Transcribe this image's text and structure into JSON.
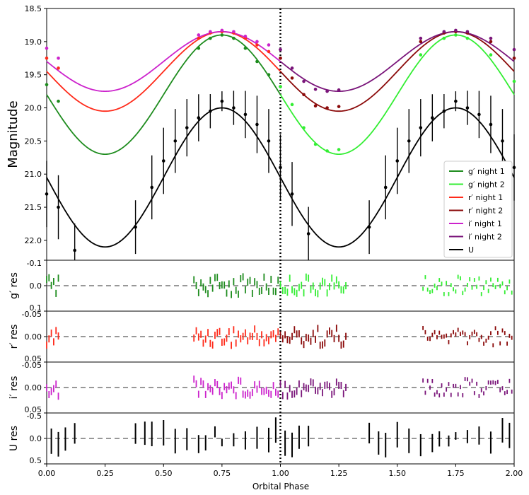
{
  "chart_data": [
    {
      "type": "line",
      "panel": "main",
      "ylabel": "Magnitude",
      "xlim": [
        0,
        2
      ],
      "ylim": [
        18.5,
        22.3
      ],
      "y_inverted": true,
      "y_ticks": [
        "18.5",
        "19.0",
        "19.5",
        "20.0",
        "20.5",
        "21.0",
        "21.5",
        "22.0"
      ],
      "vertical_line_at_phase": 1.0,
      "legend_position": "lower-right",
      "series": [
        {
          "name": "g′ night 1",
          "color": "#1e8c1e",
          "phase": [
            0.0,
            0.05,
            0.65,
            0.7,
            0.75,
            0.8,
            0.85,
            0.9,
            0.95,
            1.0
          ],
          "mag": [
            19.65,
            19.9,
            19.1,
            18.95,
            18.9,
            18.95,
            19.1,
            19.3,
            19.5,
            19.68
          ],
          "model_mean": 19.8,
          "model_amplitude": 0.9
        },
        {
          "name": "g′ night 2",
          "color": "#33ee33",
          "phase": [
            1.0,
            1.05,
            1.1,
            1.15,
            1.2,
            1.25,
            1.6,
            1.7,
            1.75,
            1.8,
            1.9,
            2.0
          ],
          "mag": [
            19.68,
            19.95,
            20.3,
            20.55,
            20.65,
            20.63,
            19.2,
            18.95,
            18.9,
            18.95,
            19.2,
            19.6
          ]
        },
        {
          "name": "r′ night 1",
          "color": "#ff2a1a",
          "phase": [
            0.0,
            0.05,
            0.65,
            0.7,
            0.75,
            0.8,
            0.85,
            0.9,
            0.95,
            1.0
          ],
          "mag": [
            19.25,
            19.4,
            18.95,
            18.87,
            18.85,
            18.87,
            18.95,
            19.05,
            19.15,
            19.25
          ],
          "model_mean": 19.45,
          "model_amplitude": 0.6
        },
        {
          "name": "r′ night 2",
          "color": "#8b0a0a",
          "phase": [
            1.0,
            1.05,
            1.1,
            1.15,
            1.2,
            1.25,
            1.6,
            1.7,
            1.75,
            1.8,
            1.9,
            2.0
          ],
          "mag": [
            19.25,
            19.55,
            19.8,
            19.97,
            20.0,
            19.98,
            19.0,
            18.87,
            18.85,
            18.87,
            19.0,
            19.25
          ]
        },
        {
          "name": "i′ night 1",
          "color": "#cc22cc",
          "phase": [
            0.0,
            0.05,
            0.65,
            0.7,
            0.75,
            0.8,
            0.85,
            0.9,
            0.95,
            1.0
          ],
          "mag": [
            19.1,
            19.25,
            18.9,
            18.85,
            18.83,
            18.85,
            18.92,
            19.0,
            19.05,
            19.12
          ],
          "model_mean": 19.3,
          "model_amplitude": 0.45
        },
        {
          "name": "i′ night 2",
          "color": "#7a157a",
          "phase": [
            1.0,
            1.05,
            1.1,
            1.15,
            1.2,
            1.25,
            1.6,
            1.7,
            1.75,
            1.8,
            1.9,
            2.0
          ],
          "mag": [
            19.12,
            19.4,
            19.6,
            19.72,
            19.75,
            19.73,
            18.95,
            18.85,
            18.83,
            18.85,
            18.95,
            19.12
          ]
        },
        {
          "name": "U",
          "color": "#000000",
          "phase": [
            0.0,
            0.05,
            0.12,
            0.38,
            0.45,
            0.5,
            0.55,
            0.6,
            0.65,
            0.7,
            0.75,
            0.8,
            0.85,
            0.9,
            0.95,
            1.0,
            1.05,
            1.12,
            1.38,
            1.45,
            1.5,
            1.55,
            1.6,
            1.65,
            1.7,
            1.75,
            1.8,
            1.85,
            1.9,
            1.95,
            2.0
          ],
          "mag": [
            21.3,
            21.5,
            22.15,
            21.8,
            21.2,
            20.8,
            20.5,
            20.3,
            20.15,
            20.05,
            19.9,
            20.0,
            20.1,
            20.25,
            20.5,
            20.9,
            21.3,
            21.9,
            21.8,
            21.2,
            20.8,
            20.5,
            20.3,
            20.15,
            20.05,
            19.9,
            20.0,
            20.1,
            20.25,
            20.5,
            20.9
          ],
          "model_mean": 21.05,
          "model_amplitude": 1.05
        }
      ]
    },
    {
      "type": "bar",
      "panel": "gres",
      "ylabel": "g′ res",
      "ylim": [
        -0.1,
        0.1
      ],
      "y_ticks": [
        "-0.1",
        "0.0",
        "0.1"
      ]
    },
    {
      "type": "bar",
      "panel": "rres",
      "ylabel": "r′ res",
      "ylim": [
        -0.05,
        0.05
      ],
      "y_ticks": [
        "-0.05",
        "0.00",
        "0.05"
      ]
    },
    {
      "type": "bar",
      "panel": "ires",
      "ylabel": "i′ res",
      "ylim": [
        -0.05,
        0.05
      ],
      "y_ticks": [
        "-0.05",
        "0.00",
        "0.05"
      ]
    },
    {
      "type": "bar",
      "panel": "ures",
      "ylabel": "U res",
      "ylim": [
        -0.5,
        0.5
      ],
      "y_ticks": [
        "-0.5",
        "0.0",
        "0.5"
      ]
    }
  ],
  "x_ticks": [
    "0.00",
    "0.25",
    "0.50",
    "0.75",
    "1.00",
    "1.25",
    "1.50",
    "1.75",
    "2.00"
  ],
  "xlabel": "Orbital Phase"
}
